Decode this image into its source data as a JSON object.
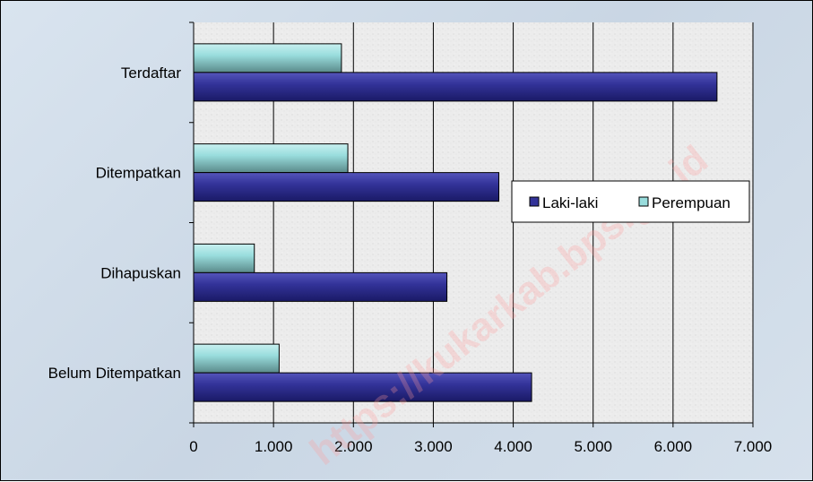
{
  "chart_data": {
    "type": "bar",
    "orientation": "horizontal",
    "categories": [
      "Terdaftar",
      "Ditempatkan",
      "Dihapuskan",
      "Belum Ditempatkan"
    ],
    "series": [
      {
        "name": "Laki-laki",
        "values": [
          6550,
          3820,
          3170,
          4230
        ],
        "color": "#333399"
      },
      {
        "name": "Perempuan",
        "values": [
          1850,
          1930,
          760,
          1070
        ],
        "color": "#99dddd"
      }
    ],
    "xlim": [
      0,
      7000
    ],
    "x_ticks": [
      0,
      1000,
      2000,
      3000,
      4000,
      5000,
      6000,
      7000
    ],
    "x_tick_labels": [
      "0",
      "1.000",
      "2.000",
      "3.000",
      "4.000",
      "5.000",
      "6.000",
      "7.000"
    ],
    "grid": "vertical",
    "legend_placement": "right"
  },
  "watermark": "https://kukarkab.bps.go.id",
  "colors": {
    "plot_background": "#ebebeb",
    "frame_background": "#d5e0eb",
    "grid": "#000000"
  }
}
